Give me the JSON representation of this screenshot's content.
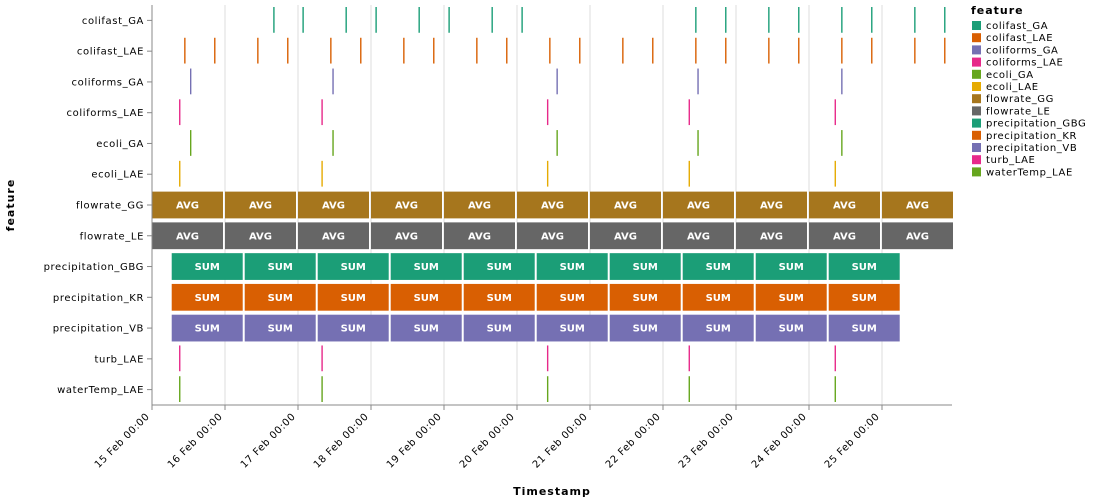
{
  "chart_data": {
    "type": "timeline",
    "xlabel": "Timestamp",
    "ylabel": "feature",
    "legend_title": "feature",
    "legend_position": "right",
    "grid": true,
    "x_ticks": [
      "15 Feb 00:00",
      "16 Feb 00:00",
      "17 Feb 00:00",
      "18 Feb 00:00",
      "19 Feb 00:00",
      "20 Feb 00:00",
      "21 Feb 00:00",
      "22 Feb 00:00",
      "23 Feb 00:00",
      "24 Feb 00:00",
      "25 Feb 00:00"
    ],
    "x_range_days": [
      0,
      11
    ],
    "y_categories": [
      "colifast_GA",
      "colifast_LAE",
      "coliforms_GA",
      "coliforms_LAE",
      "ecoli_GA",
      "ecoli_LAE",
      "flowrate_GG",
      "flowrate_LE",
      "precipitation_GBG",
      "precipitation_KR",
      "precipitation_VB",
      "turb_LAE",
      "waterTemp_LAE"
    ],
    "legend": [
      {
        "name": "colifast_GA",
        "color": "#1b9e77"
      },
      {
        "name": "colifast_LAE",
        "color": "#d95f02"
      },
      {
        "name": "coliforms_GA",
        "color": "#7570b3"
      },
      {
        "name": "coliforms_LAE",
        "color": "#e7298a"
      },
      {
        "name": "ecoli_GA",
        "color": "#66a61e"
      },
      {
        "name": "ecoli_LAE",
        "color": "#e6ab02"
      },
      {
        "name": "flowrate_GG",
        "color": "#a6761d"
      },
      {
        "name": "flowrate_LE",
        "color": "#666666"
      },
      {
        "name": "precipitation_GBG",
        "color": "#1b9e77"
      },
      {
        "name": "precipitation_KR",
        "color": "#d95f02"
      },
      {
        "name": "precipitation_VB",
        "color": "#7570b3"
      },
      {
        "name": "turb_LAE",
        "color": "#e7298a"
      },
      {
        "name": "waterTemp_LAE",
        "color": "#66a61e"
      }
    ],
    "events": [
      {
        "feature": "colifast_GA",
        "days": [
          1.67,
          2.07,
          2.66,
          3.07,
          3.66,
          4.07,
          4.66,
          5.07,
          7.45,
          7.86,
          8.45,
          8.86,
          9.45,
          9.86,
          10.45,
          10.86
        ]
      },
      {
        "feature": "colifast_LAE",
        "days": [
          0.45,
          0.86,
          1.45,
          1.86,
          2.45,
          2.86,
          3.45,
          3.86,
          4.45,
          4.86,
          5.45,
          5.86,
          6.45,
          6.86,
          7.45,
          7.86,
          8.45,
          8.86,
          9.45,
          9.86,
          10.45,
          10.86
        ]
      },
      {
        "feature": "coliforms_GA",
        "days": [
          0.53,
          2.48,
          5.55,
          7.48,
          9.45
        ]
      },
      {
        "feature": "coliforms_LAE",
        "days": [
          0.38,
          2.33,
          5.42,
          7.36,
          9.36
        ]
      },
      {
        "feature": "ecoli_GA",
        "days": [
          0.53,
          2.48,
          5.55,
          7.48,
          9.45
        ]
      },
      {
        "feature": "ecoli_LAE",
        "days": [
          0.38,
          2.33,
          5.42,
          7.36,
          9.36
        ]
      },
      {
        "feature": "turb_LAE",
        "days": [
          0.38,
          2.33,
          5.42,
          7.36,
          9.36
        ]
      },
      {
        "feature": "waterTemp_LAE",
        "days": [
          0.38,
          2.33,
          5.42,
          7.36,
          9.36
        ]
      }
    ],
    "aggregates": [
      {
        "feature": "flowrate_GG",
        "label": "AVG",
        "start": 0,
        "end": 11,
        "segment_days": 1
      },
      {
        "feature": "flowrate_LE",
        "label": "AVG",
        "start": 0,
        "end": 11,
        "segment_days": 1
      },
      {
        "feature": "precipitation_GBG",
        "label": "SUM",
        "start": 0.27,
        "end": 10.27,
        "segment_days": 1
      },
      {
        "feature": "precipitation_KR",
        "label": "SUM",
        "start": 0.27,
        "end": 10.27,
        "segment_days": 1
      },
      {
        "feature": "precipitation_VB",
        "label": "SUM",
        "start": 0.27,
        "end": 10.27,
        "segment_days": 1
      }
    ]
  }
}
